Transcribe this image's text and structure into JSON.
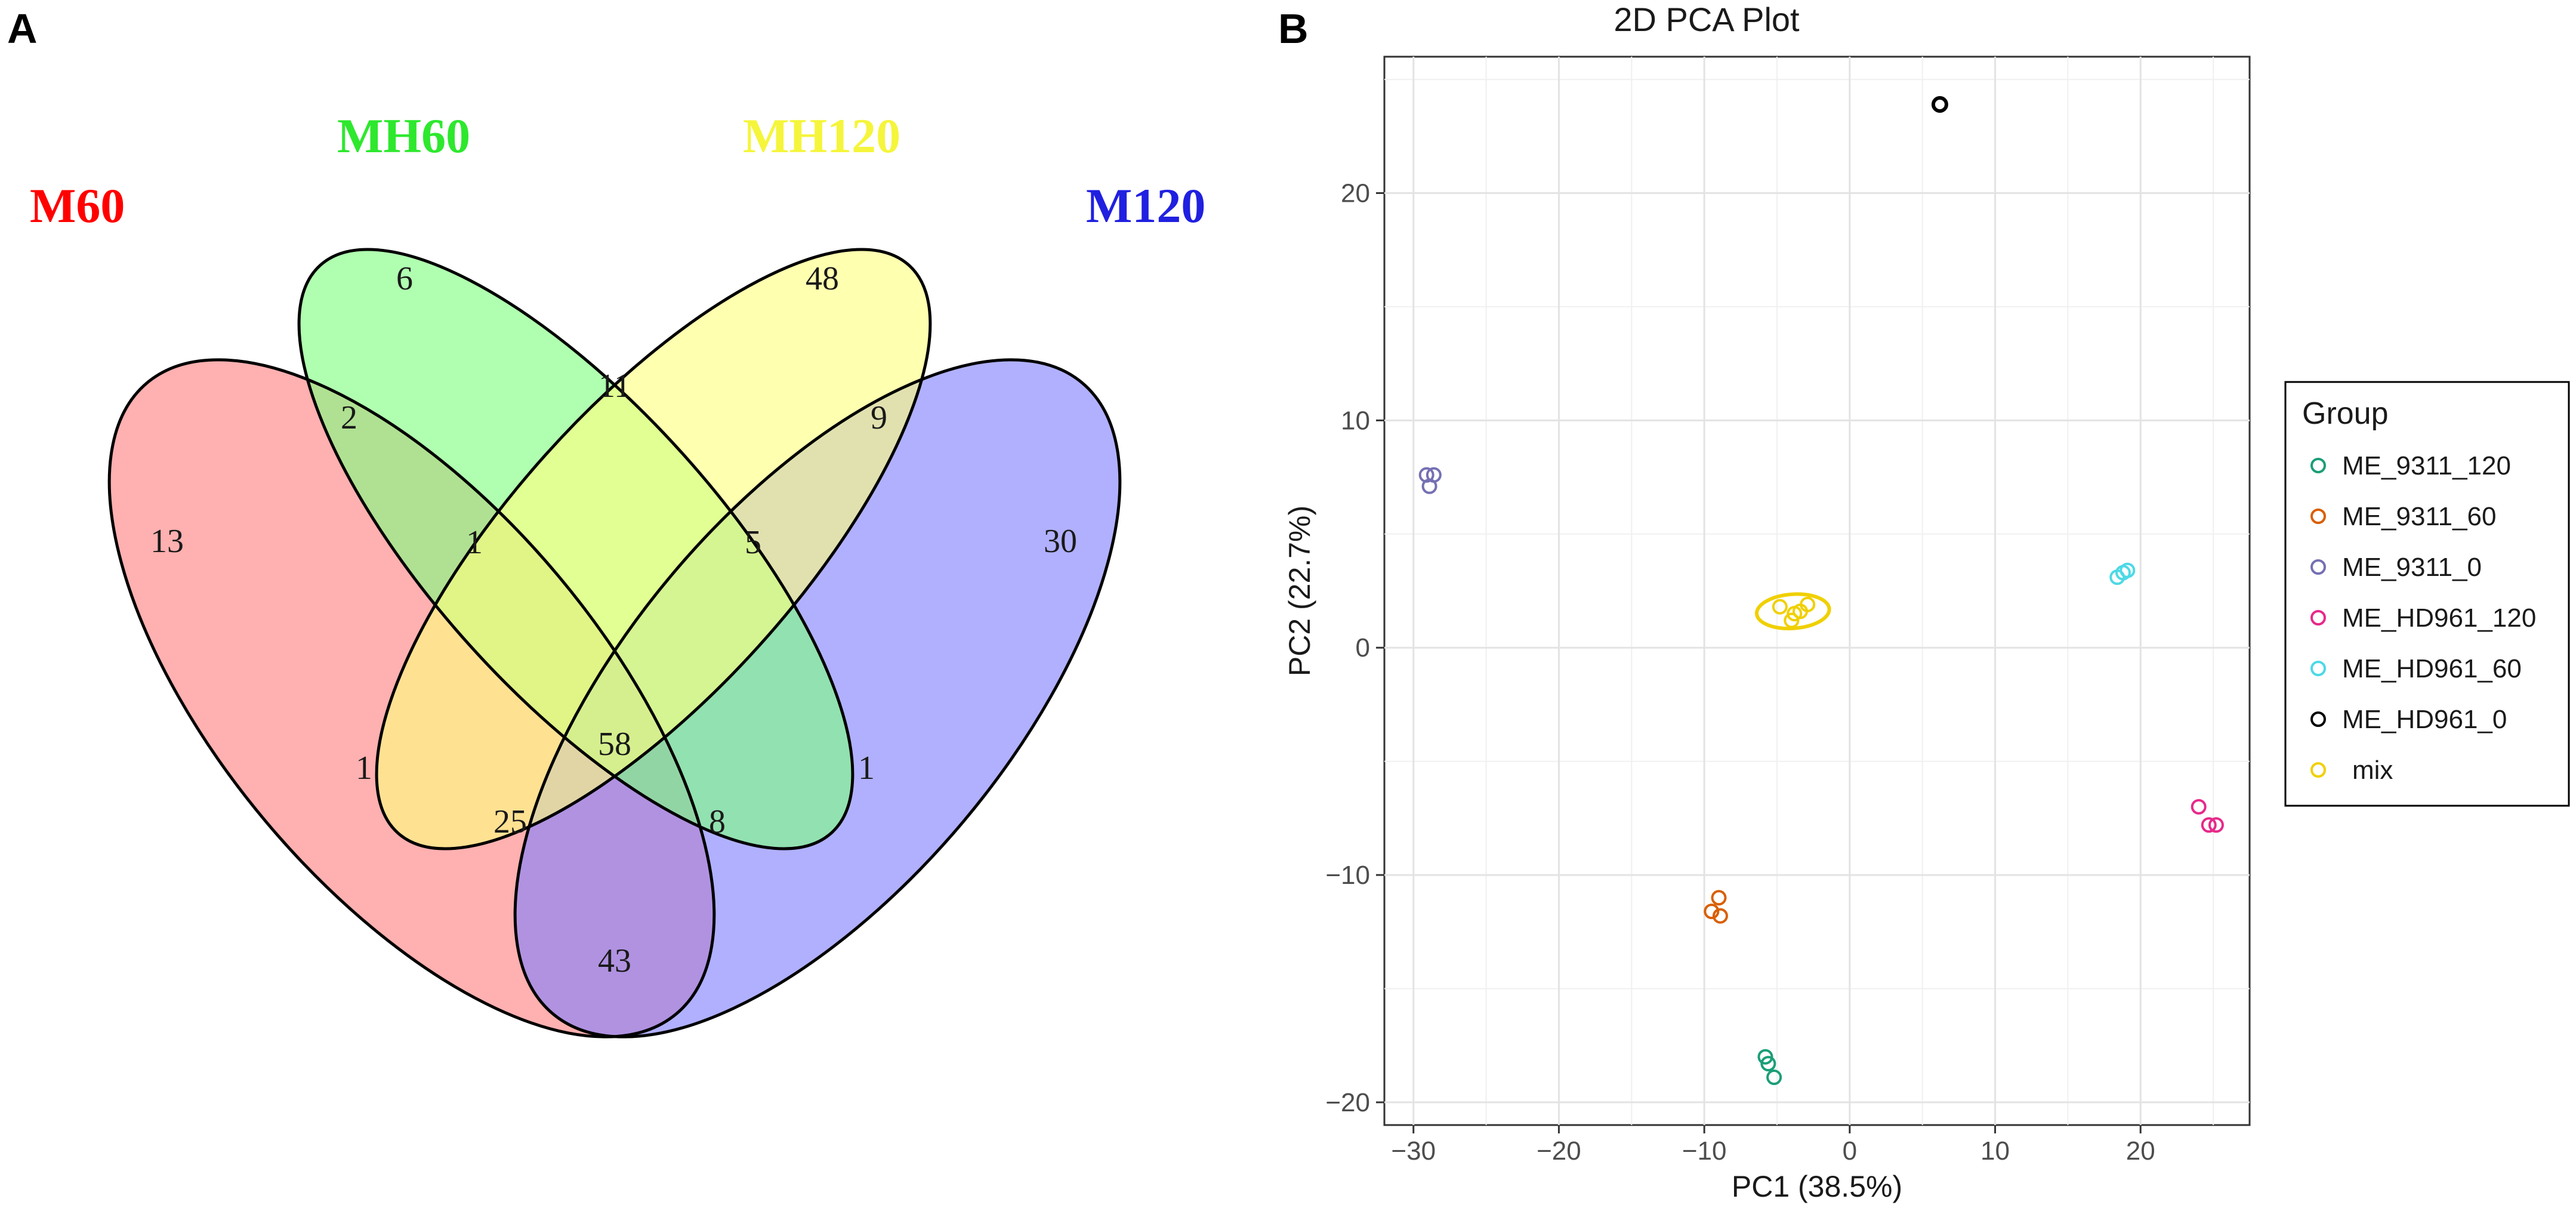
{
  "chart_data": [
    {
      "type": "venn",
      "panel": "A",
      "sets": [
        {
          "name": "M60",
          "color": "#ff0000",
          "fill": "#ff7f7f"
        },
        {
          "name": "MH60",
          "color": "#2ee82e",
          "fill": "#7fff7f"
        },
        {
          "name": "MH120",
          "color": "#f5f53c",
          "fill": "#ffff7f"
        },
        {
          "name": "M120",
          "color": "#2020e0",
          "fill": "#7f7fff"
        }
      ],
      "regions": [
        {
          "sets": [
            "M60"
          ],
          "value": 13
        },
        {
          "sets": [
            "MH60"
          ],
          "value": 6
        },
        {
          "sets": [
            "MH120"
          ],
          "value": 48
        },
        {
          "sets": [
            "M120"
          ],
          "value": 30
        },
        {
          "sets": [
            "M60",
            "MH60"
          ],
          "value": 2
        },
        {
          "sets": [
            "MH60",
            "MH120"
          ],
          "value": 11
        },
        {
          "sets": [
            "MH120",
            "M120"
          ],
          "value": 9
        },
        {
          "sets": [
            "M60",
            "MH60",
            "MH120"
          ],
          "value": 1
        },
        {
          "sets": [
            "MH60",
            "MH120",
            "M120"
          ],
          "value": 5
        },
        {
          "sets": [
            "M60",
            "MH120"
          ],
          "value": 1
        },
        {
          "sets": [
            "M60",
            "MH60",
            "MH120",
            "M120"
          ],
          "value": 58
        },
        {
          "sets": [
            "MH60",
            "M120"
          ],
          "value": 1
        },
        {
          "sets": [
            "M60",
            "MH120",
            "M120"
          ],
          "value": 25
        },
        {
          "sets": [
            "M60",
            "MH60",
            "M120"
          ],
          "value": 8
        },
        {
          "sets": [
            "M60",
            "M120"
          ],
          "value": 43
        }
      ]
    },
    {
      "type": "scatter",
      "panel": "B",
      "title": "2D PCA Plot",
      "xlabel": "PC1 (38.5%)",
      "ylabel": "PC2 (22.7%)",
      "xlim": [
        -32,
        27.5
      ],
      "ylim": [
        -21,
        26
      ],
      "xticks": [
        -30,
        -20,
        -10,
        0,
        10,
        20
      ],
      "yticks": [
        -20,
        -10,
        0,
        10,
        20
      ],
      "grid": true,
      "legend_title": "Group",
      "legend_position": "right",
      "series": [
        {
          "name": "ME_9311_120",
          "color": "#1b9e77",
          "points": [
            [
              -5.8,
              -18.0
            ],
            [
              -5.6,
              -18.3
            ],
            [
              -5.2,
              -18.9
            ]
          ]
        },
        {
          "name": "ME_9311_60",
          "color": "#d95f02",
          "points": [
            [
              -9.5,
              -11.6
            ],
            [
              -9.0,
              -11.0
            ],
            [
              -8.9,
              -11.8
            ]
          ]
        },
        {
          "name": "ME_9311_0",
          "color": "#7570b3",
          "points": [
            [
              -29.1,
              7.6
            ],
            [
              -28.6,
              7.6
            ],
            [
              -28.9,
              7.1
            ]
          ]
        },
        {
          "name": "ME_HD961_120",
          "color": "#e7298a",
          "points": [
            [
              24.0,
              -7.0
            ],
            [
              24.7,
              -7.8
            ],
            [
              25.2,
              -7.8
            ]
          ]
        },
        {
          "name": "ME_HD961_60",
          "color": "#4dd9e6",
          "points": [
            [
              18.4,
              3.1
            ],
            [
              18.8,
              3.3
            ],
            [
              19.1,
              3.4
            ]
          ]
        },
        {
          "name": "ME_HD961_0",
          "color": "#000000",
          "points": [
            [
              6.2,
              23.9
            ]
          ]
        },
        {
          "name": "mix",
          "color": "#f0d000",
          "points": [
            [
              -4.8,
              1.8
            ],
            [
              -4.0,
              1.2
            ],
            [
              -3.4,
              1.6
            ],
            [
              -2.9,
              1.9
            ],
            [
              -3.8,
              1.5
            ]
          ]
        }
      ],
      "ellipses": [
        {
          "group": "mix",
          "center": [
            -3.9,
            1.6
          ],
          "rx_units": 2.5,
          "ry_units": 0.75
        }
      ]
    }
  ]
}
